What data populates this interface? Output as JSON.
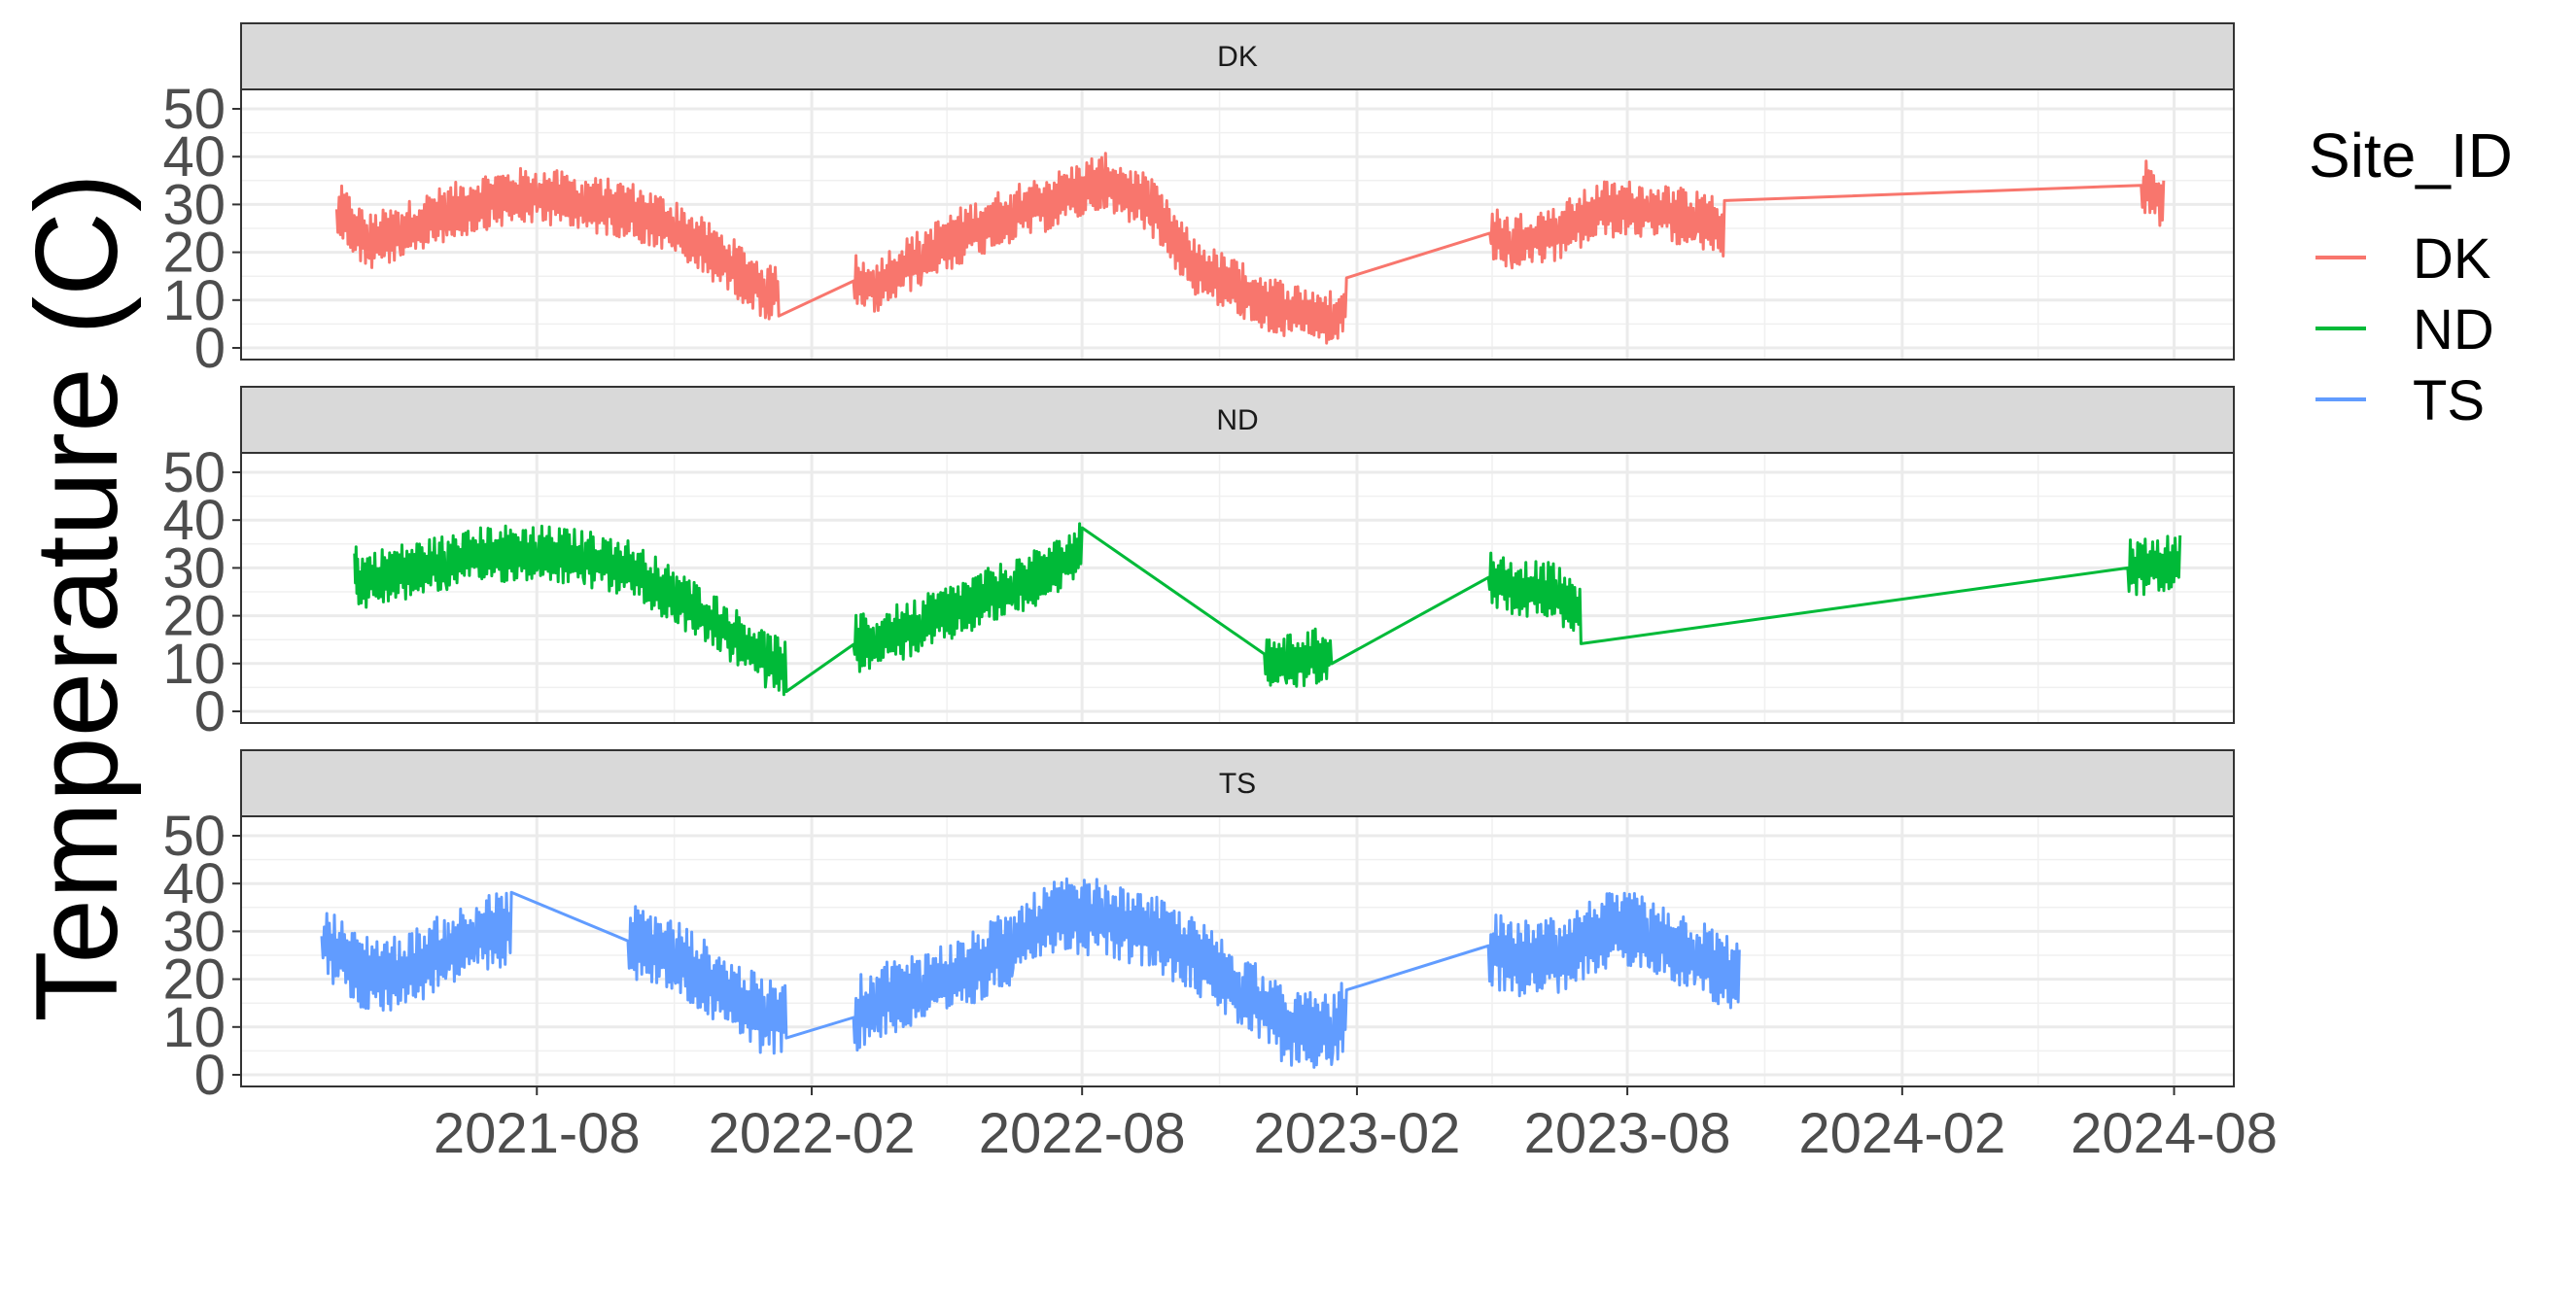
{
  "chart_data": {
    "type": "line",
    "ylabel": "Temperature (C)",
    "xlabel": "",
    "ylim": [
      0,
      50
    ],
    "yticks": [
      0,
      10,
      20,
      30,
      40,
      50
    ],
    "xlim": [
      "2021-01-15",
      "2024-09-10"
    ],
    "xticks": [
      "2021-08",
      "2022-02",
      "2022-08",
      "2023-02",
      "2023-08",
      "2024-02",
      "2024-08"
    ],
    "grid": true,
    "legend": {
      "title": "Site_ID",
      "position": "right"
    },
    "facets": [
      "DK",
      "ND",
      "TS"
    ],
    "series": [
      {
        "name": "DK",
        "color": "#F8766D",
        "points": [
          [
            "2021-03-20",
            29
          ],
          [
            "2021-04-10",
            22
          ],
          [
            "2021-05-01",
            24
          ],
          [
            "2021-06-01",
            28
          ],
          [
            "2021-07-01",
            31
          ],
          [
            "2021-08-01",
            32
          ],
          [
            "2021-09-01",
            30
          ],
          [
            "2021-10-01",
            29
          ],
          [
            "2021-11-01",
            25
          ],
          [
            "2021-12-01",
            19
          ],
          [
            "2022-01-01",
            12
          ],
          [
            "2022-01-10",
            12
          ],
          [
            "2022-03-01",
            14
          ],
          [
            "2022-03-15",
            13
          ],
          [
            "2022-04-15",
            19
          ],
          [
            "2022-05-15",
            24
          ],
          [
            "2022-06-15",
            28
          ],
          [
            "2022-07-15",
            31
          ],
          [
            "2022-08-15",
            35
          ],
          [
            "2022-09-15",
            30
          ],
          [
            "2022-10-15",
            17
          ],
          [
            "2022-11-15",
            12
          ],
          [
            "2022-12-15",
            8
          ],
          [
            "2023-01-15",
            6
          ],
          [
            "2023-01-25",
            10
          ],
          [
            "2023-05-01",
            24
          ],
          [
            "2023-05-15",
            22
          ],
          [
            "2023-06-15",
            24
          ],
          [
            "2023-07-15",
            29
          ],
          [
            "2023-08-15",
            29
          ],
          [
            "2023-09-15",
            27
          ],
          [
            "2023-10-05",
            25
          ],
          [
            "2024-07-10",
            34
          ],
          [
            "2024-07-25",
            31
          ]
        ]
      },
      {
        "name": "ND",
        "color": "#00BA38",
        "points": [
          [
            "2021-04-01",
            33
          ],
          [
            "2021-04-03",
            27
          ],
          [
            "2021-05-01",
            29
          ],
          [
            "2021-06-01",
            31
          ],
          [
            "2021-07-01",
            33
          ],
          [
            "2021-08-01",
            33
          ],
          [
            "2021-09-01",
            32
          ],
          [
            "2021-10-01",
            30
          ],
          [
            "2021-11-01",
            24
          ],
          [
            "2021-12-01",
            18
          ],
          [
            "2022-01-01",
            11
          ],
          [
            "2022-01-15",
            9
          ],
          [
            "2022-03-01",
            14
          ],
          [
            "2022-03-15",
            15
          ],
          [
            "2022-04-15",
            18
          ],
          [
            "2022-05-15",
            22
          ],
          [
            "2022-06-15",
            26
          ],
          [
            "2022-07-15",
            30
          ],
          [
            "2022-08-01",
            34
          ],
          [
            "2022-12-01",
            12
          ],
          [
            "2022-12-15",
            10
          ],
          [
            "2023-01-15",
            12
          ],
          [
            "2023-04-30",
            28
          ],
          [
            "2023-05-15",
            26
          ],
          [
            "2023-06-15",
            25
          ],
          [
            "2023-07-01",
            20
          ],
          [
            "2024-07-01",
            30
          ],
          [
            "2024-08-05",
            31
          ]
        ]
      },
      {
        "name": "TS",
        "color": "#619CFF",
        "points": [
          [
            "2021-03-10",
            29
          ],
          [
            "2021-04-01",
            22
          ],
          [
            "2021-05-01",
            21
          ],
          [
            "2021-06-01",
            26
          ],
          [
            "2021-06-20",
            29
          ],
          [
            "2021-07-15",
            31
          ],
          [
            "2021-10-01",
            28
          ],
          [
            "2021-11-01",
            25
          ],
          [
            "2021-12-01",
            18
          ],
          [
            "2022-01-01",
            12
          ],
          [
            "2022-01-15",
            12
          ],
          [
            "2022-03-01",
            12
          ],
          [
            "2022-03-15",
            15
          ],
          [
            "2022-04-15",
            18
          ],
          [
            "2022-05-15",
            21
          ],
          [
            "2022-06-15",
            27
          ],
          [
            "2022-07-15",
            33
          ],
          [
            "2022-08-15",
            33
          ],
          [
            "2022-09-15",
            30
          ],
          [
            "2022-10-15",
            25
          ],
          [
            "2022-11-15",
            18
          ],
          [
            "2022-12-15",
            10
          ],
          [
            "2023-01-15",
            9
          ],
          [
            "2023-01-25",
            14
          ],
          [
            "2023-04-30",
            27
          ],
          [
            "2023-05-15",
            24
          ],
          [
            "2023-06-15",
            25
          ],
          [
            "2023-07-15",
            30
          ],
          [
            "2023-08-15",
            30
          ],
          [
            "2023-09-15",
            25
          ],
          [
            "2023-10-15",
            20
          ]
        ]
      }
    ]
  }
}
